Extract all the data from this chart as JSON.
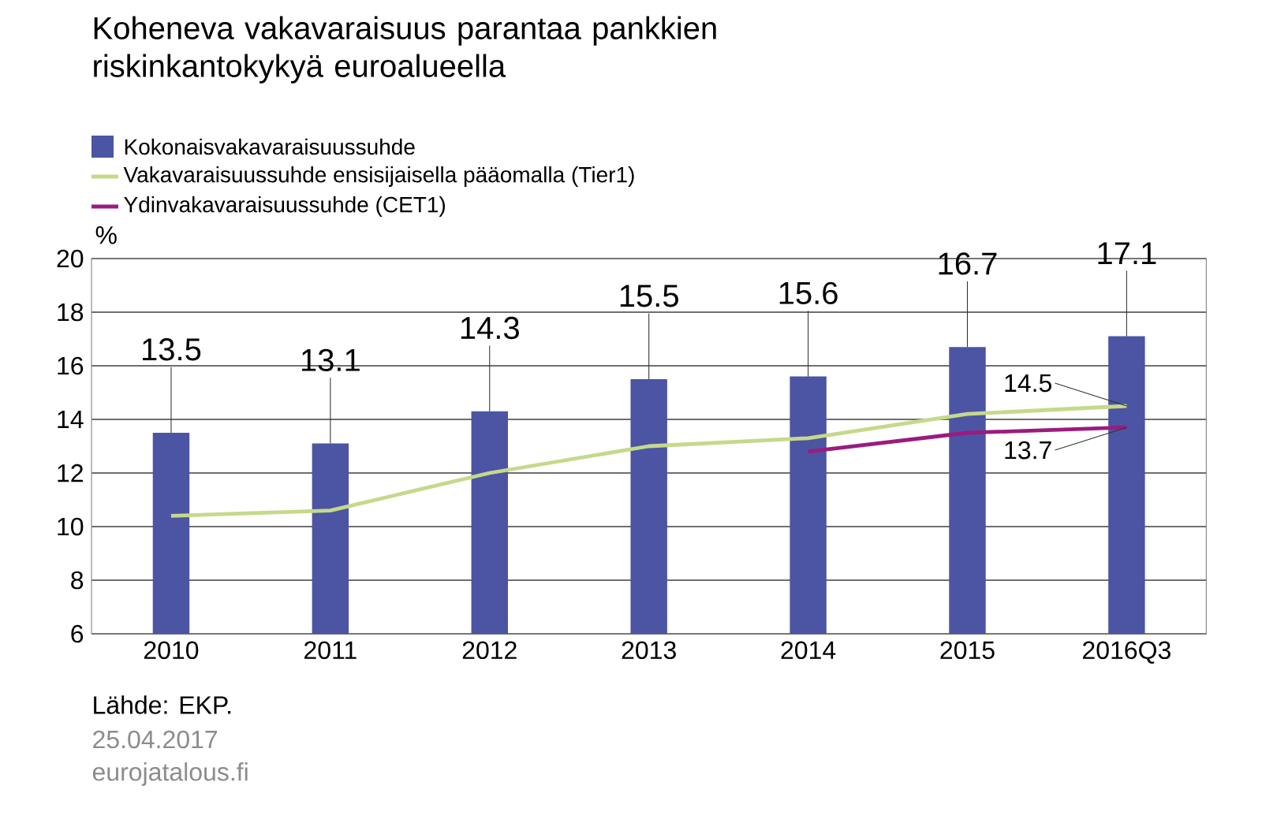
{
  "chart_data": {
    "type": "bar",
    "title": "Koheneva vakavaraisuus parantaa pankkien riskinkantokykyä euroalueella",
    "ylabel": "%",
    "categories": [
      "2010",
      "2011",
      "2012",
      "2013",
      "2014",
      "2015",
      "2016Q3"
    ],
    "ylim": [
      6,
      20
    ],
    "yticks": [
      6,
      8,
      10,
      12,
      14,
      16,
      18,
      20
    ],
    "grid": "y",
    "legend": "top left",
    "series": [
      {
        "name": "Kokonaisvakavaraisuussuhde",
        "color": "#4b55a3",
        "values": [
          13.5,
          13.1,
          14.3,
          15.5,
          15.6,
          16.7,
          17.1
        ],
        "value_labels": [
          "13.5",
          "13.1",
          "14.3",
          "15.5",
          "15.6",
          "16.7",
          "17.1"
        ]
      },
      {
        "name": "Vakavaraisuussuhde ensisijaisella pääomalla (Tier1)",
        "type": "line",
        "color": "#c5d98b",
        "values": [
          10.4,
          10.6,
          12.0,
          13.0,
          13.3,
          14.2,
          14.5
        ],
        "value_labels": [
          null,
          null,
          null,
          null,
          null,
          null,
          "14.5"
        ]
      },
      {
        "name": "Ydinvakavaraisuussuhde (CET1)",
        "type": "line",
        "color": "#9b1b80",
        "values": [
          null,
          null,
          null,
          null,
          12.8,
          13.5,
          13.7
        ],
        "value_labels": [
          null,
          null,
          null,
          null,
          null,
          null,
          "13.7"
        ]
      }
    ],
    "annotations": [
      "Lähde: EKP.",
      "25.04.2017",
      "eurojatalous.fi"
    ]
  }
}
